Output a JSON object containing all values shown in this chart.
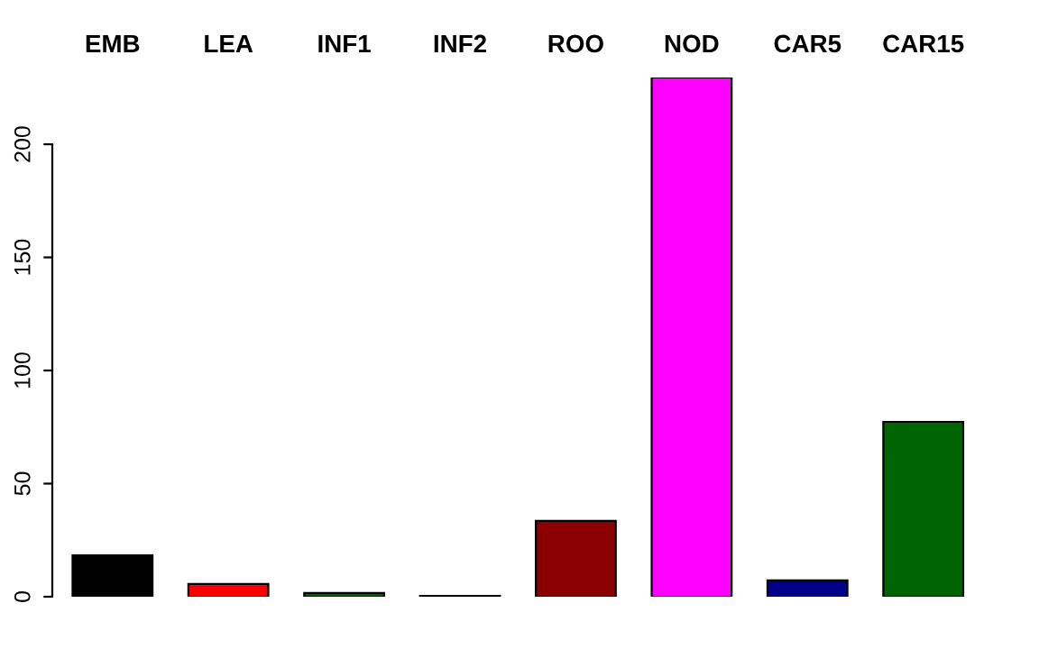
{
  "chart_data": {
    "type": "bar",
    "categories": [
      "EMB",
      "LEA",
      "INF1",
      "INF2",
      "ROO",
      "NOD",
      "CAR5",
      "CAR15"
    ],
    "values": [
      18.3,
      5.6,
      1.6,
      0.4,
      33.5,
      229.5,
      7.2,
      77.3
    ],
    "colors": [
      "#000000",
      "#ff0000",
      "#006400",
      "#00008b",
      "#8b0000",
      "#ff00ff",
      "#00008b",
      "#006400"
    ],
    "ylim": [
      0,
      229.5
    ],
    "yticks": [
      0,
      50,
      100,
      150,
      200
    ],
    "grid": false,
    "legend": false
  }
}
